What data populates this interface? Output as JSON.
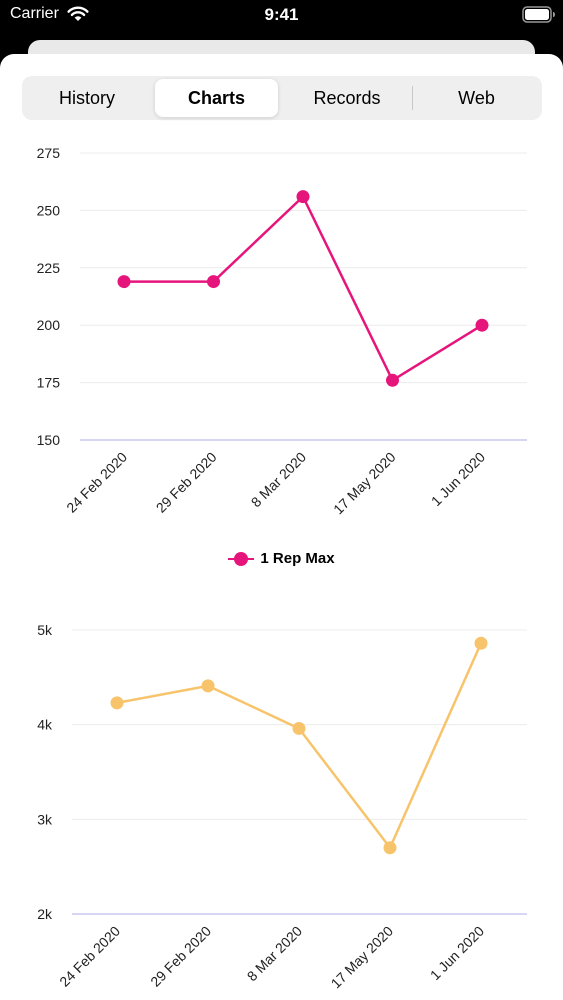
{
  "status_bar": {
    "carrier": "Carrier",
    "time": "9:41"
  },
  "tabs": [
    {
      "label": "History",
      "selected": false
    },
    {
      "label": "Charts",
      "selected": true
    },
    {
      "label": "Records",
      "selected": false
    },
    {
      "label": "Web",
      "selected": false
    }
  ],
  "chart_data": [
    {
      "type": "line",
      "x": [
        "24 Feb 2020",
        "29 Feb 2020",
        "8 Mar 2020",
        "17 May 2020",
        "1 Jun 2020"
      ],
      "series": [
        {
          "name": "1 Rep Max",
          "values": [
            219,
            219,
            256,
            176,
            200
          ],
          "color": "#e6157c"
        }
      ],
      "yticks": [
        "150",
        "175",
        "200",
        "225",
        "250",
        "275"
      ],
      "ylim": [
        150,
        275
      ],
      "grid": true,
      "legend": "bottom-center"
    },
    {
      "type": "line",
      "x": [
        "24 Feb 2020",
        "29 Feb 2020",
        "8 Mar 2020",
        "17 May 2020",
        "1 Jun 2020"
      ],
      "series": [
        {
          "values": [
            4230,
            4410,
            3960,
            2700,
            4860
          ],
          "color": "#f7c46c"
        }
      ],
      "yticks": [
        "2k",
        "3k",
        "4k",
        "5k"
      ],
      "ylim": [
        2000,
        5000
      ],
      "grid": true
    }
  ]
}
